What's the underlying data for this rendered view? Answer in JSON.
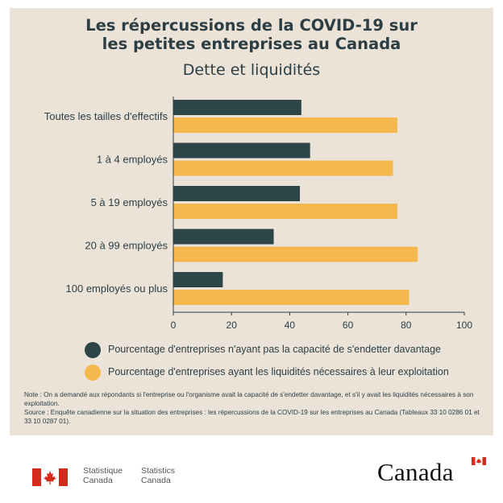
{
  "header": {
    "title_line1": "Les répercussions de la COVID-19 sur",
    "title_line2": "les petites entreprises au Canada",
    "subtitle": "Dette et liquidités"
  },
  "chart_data": {
    "type": "bar",
    "orientation": "horizontal",
    "categories": [
      "Toutes les tailles d'effectifs",
      "1 à 4 employés",
      "5 à 19 employés",
      "20 à 99 employés",
      "100 employés ou plus"
    ],
    "series": [
      {
        "name": "Pourcentage d'entreprises n'ayant pas la capacité de s'endetter davantage",
        "values": [
          44,
          47,
          43.5,
          34.5,
          17
        ],
        "color": "#2e4548"
      },
      {
        "name": "Pourcentage d'entreprises ayant les liquidités nécessaires à leur exploitation",
        "values": [
          77,
          75.5,
          77,
          84,
          81
        ],
        "color": "#f5b84e"
      }
    ],
    "xlim": [
      0,
      100
    ],
    "xticks": [
      0,
      20,
      40,
      60,
      80,
      100
    ],
    "grid": false,
    "legend_position": "bottom"
  },
  "notes": {
    "note": "Note : On a demandé aux répondants si l'entreprise ou l'organisme avait la capacité de s'endetter davantage, et s'il y avait les liquidités nécessaires à son exploitation.",
    "source": "Source : Enquête canadienne sur la situation des entreprises : les répercussions de la COVID-19 sur les entreprises au Canada (Tableaux 33 10 0286 01 et 33 10 0287 01)."
  },
  "footer": {
    "agency_fr": "Statistique\nCanada",
    "agency_en": "Statistics\nCanada",
    "wordmark": "Canada",
    "flag_red": "#d52b1e"
  }
}
